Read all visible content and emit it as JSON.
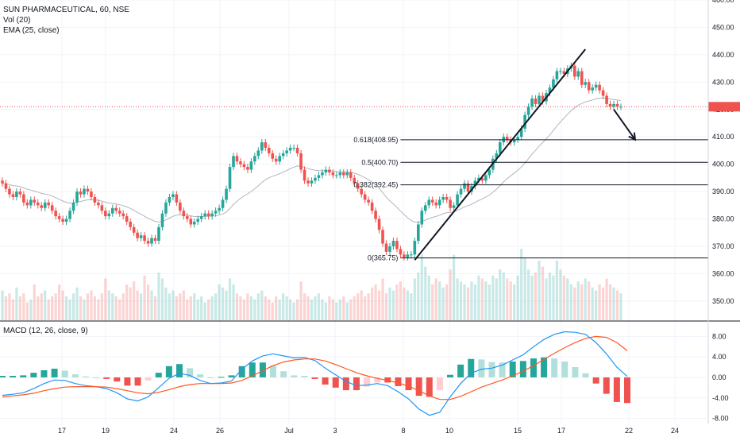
{
  "header": {
    "symbol": "SUN PHARMACEUTICAL, 60, NSE",
    "volume_label": "Vol (20)",
    "ema_label": "EMA (25, close)"
  },
  "macd_panel": {
    "label": "MACD (12, 26, close, 9)"
  },
  "colors": {
    "up": "#26a69a",
    "down": "#ef5350",
    "macd_line": "#2196f3",
    "signal_line": "#ff5722",
    "ema_line": "#b2b5be",
    "grid": "#f0f3fa",
    "current_price_line": "#ef5350"
  },
  "chart_data": [
    {
      "type": "candlestick",
      "panel": "price",
      "ylim": [
        343,
        460
      ],
      "y_ticks": [
        "350.00",
        "360.00",
        "370.00",
        "380.00",
        "390.00",
        "400.00",
        "410.00",
        "420.00",
        "430.00",
        "440.00",
        "450.00",
        "460.00"
      ],
      "x_ticks": [
        "17",
        "19",
        "24",
        "26",
        "Jul",
        "3",
        "8",
        "10",
        "15",
        "17",
        "22",
        "24"
      ],
      "current_price": 421,
      "ema_period": 25,
      "fibonacci": [
        {
          "label": "0.618(408.95)",
          "value": 408.95
        },
        {
          "label": "0.5(400.70)",
          "value": 400.7
        },
        {
          "label": "0.382(392.45)",
          "value": 392.45
        },
        {
          "label": "0(365.75)",
          "value": 365.75
        }
      ],
      "trendline": {
        "from": {
          "bar": 116,
          "price": 365
        },
        "to": {
          "bar": 164,
          "price": 442
        }
      },
      "arrow": {
        "from": {
          "bar": 172,
          "price": 420
        },
        "to": {
          "bar": 178,
          "price": 409
        }
      },
      "closes": [
        393,
        391,
        389,
        388,
        390,
        389,
        386,
        385,
        387,
        386,
        385,
        384,
        386,
        385,
        383,
        381,
        380,
        379,
        380,
        383,
        386,
        390,
        389,
        391,
        390,
        388,
        386,
        385,
        383,
        381,
        382,
        384,
        383,
        382,
        381,
        379,
        377,
        375,
        373,
        374,
        372,
        371,
        373,
        372,
        377,
        382,
        386,
        388,
        389,
        386,
        383,
        381,
        380,
        378,
        379,
        380,
        381,
        382,
        381,
        382,
        383,
        384,
        387,
        391,
        399,
        403,
        401,
        400,
        399,
        398,
        401,
        403,
        405,
        408,
        406,
        404,
        402,
        401,
        403,
        404,
        405,
        406,
        406,
        404,
        398,
        394,
        393,
        394,
        395,
        396,
        397,
        398,
        397,
        396,
        396,
        397,
        396,
        397,
        395,
        393,
        391,
        389,
        387,
        386,
        383,
        380,
        376,
        371,
        368,
        370,
        372,
        369,
        367,
        366,
        367,
        367,
        372,
        378,
        383,
        385,
        387,
        386,
        385,
        387,
        388,
        387,
        384,
        385,
        389,
        391,
        393,
        390,
        392,
        394,
        395,
        394,
        396,
        398,
        402,
        404,
        408,
        410,
        409,
        408,
        409,
        410,
        413,
        418,
        421,
        424,
        422,
        425,
        423,
        426,
        428,
        431,
        434,
        434,
        433,
        435,
        436,
        432,
        434,
        429,
        430,
        427,
        428,
        429,
        427,
        425,
        422,
        421,
        422,
        421,
        421
      ],
      "volume_scale": "relative",
      "volumes": [
        10,
        8,
        9,
        7,
        11,
        8,
        9,
        6,
        7,
        12,
        8,
        9,
        10,
        7,
        8,
        9,
        12,
        10,
        8,
        7,
        9,
        11,
        8,
        7,
        9,
        10,
        8,
        7,
        9,
        14,
        10,
        9,
        8,
        7,
        9,
        12,
        11,
        13,
        10,
        9,
        15,
        12,
        10,
        8,
        16,
        14,
        11,
        9,
        10,
        8,
        9,
        10,
        7,
        8,
        9,
        7,
        8,
        6,
        7,
        8,
        9,
        12,
        11,
        10,
        14,
        12,
        9,
        8,
        7,
        9,
        8,
        7,
        9,
        10,
        8,
        7,
        6,
        8,
        7,
        9,
        8,
        7,
        6,
        7,
        13,
        9,
        8,
        7,
        8,
        9,
        7,
        6,
        8,
        7,
        6,
        7,
        8,
        6,
        7,
        8,
        9,
        10,
        8,
        9,
        11,
        12,
        10,
        14,
        9,
        11,
        10,
        12,
        13,
        11,
        10,
        9,
        14,
        16,
        22,
        18,
        15,
        12,
        14,
        13,
        11,
        12,
        17,
        22,
        14,
        13,
        12,
        11,
        13,
        12,
        15,
        14,
        13,
        12,
        15,
        14,
        17,
        16,
        14,
        13,
        12,
        15,
        24,
        21,
        17,
        15,
        16,
        20,
        18,
        14,
        16,
        15,
        20,
        17,
        15,
        14,
        12,
        11,
        13,
        12,
        14,
        13,
        11,
        10,
        12,
        11,
        14,
        12,
        11,
        10,
        9
      ],
      "volume_panel_label": "Vol (20)",
      "ema_label": "EMA (25, close)",
      "title": "SUN PHARMACEUTICAL, 60, NSE"
    },
    {
      "type": "line",
      "panel": "macd",
      "title": "MACD (12, 26, close, 9)",
      "ylim": [
        -9,
        11
      ],
      "y_ticks": [
        "8.00",
        "4.00",
        "0.00",
        "-4.00",
        "-8.00"
      ],
      "series": [
        {
          "name": "MACD",
          "role": "macd",
          "values": [
            -3.5,
            -3.3,
            -3.0,
            -2.2,
            -1.2,
            -0.5,
            -0.6,
            -1.2,
            -1.6,
            -1.8,
            -2.2,
            -3.0,
            -4.2,
            -4.6,
            -3.8,
            -2.0,
            -0.2,
            0.8,
            0.4,
            -0.6,
            -1.2,
            -1.1,
            -0.7,
            1.6,
            3.2,
            4.2,
            4.6,
            4.2,
            3.8,
            3.9,
            3.3,
            1.8,
            0.5,
            -0.8,
            -1.6,
            -1.5,
            -1.2,
            -1.6,
            -2.8,
            -4.2,
            -6.2,
            -7.4,
            -6.8,
            -3.8,
            -1.2,
            0.8,
            1.6,
            1.8,
            2.4,
            3.4,
            4.4,
            6.0,
            7.4,
            8.4,
            8.9,
            8.8,
            8.4,
            6.8,
            4.6,
            2.0,
            0.2
          ]
        },
        {
          "name": "Signal",
          "role": "signal",
          "values": [
            -3.8,
            -3.6,
            -3.4,
            -3.1,
            -2.6,
            -2.2,
            -1.9,
            -1.8,
            -1.8,
            -1.8,
            -1.9,
            -2.2,
            -2.6,
            -3.0,
            -3.2,
            -2.9,
            -2.4,
            -1.8,
            -1.4,
            -1.2,
            -1.2,
            -1.2,
            -1.1,
            -0.6,
            0.3,
            1.3,
            2.3,
            3.0,
            3.4,
            3.6,
            3.6,
            3.2,
            2.5,
            1.7,
            0.9,
            0.3,
            -0.2,
            -0.6,
            -1.1,
            -1.7,
            -2.6,
            -3.6,
            -4.3,
            -4.3,
            -3.7,
            -2.8,
            -1.9,
            -1.2,
            -0.5,
            0.3,
            1.2,
            2.3,
            3.5,
            4.7,
            5.8,
            6.8,
            7.6,
            8.0,
            7.8,
            6.8,
            5.2
          ]
        }
      ],
      "histogram_values": [
        0.3,
        0.3,
        0.4,
        0.9,
        1.4,
        1.7,
        1.3,
        0.6,
        0.2,
        0.0,
        -0.3,
        -0.8,
        -1.6,
        -1.6,
        -0.6,
        0.9,
        2.2,
        2.6,
        1.8,
        0.6,
        0.0,
        0.1,
        0.4,
        2.2,
        2.9,
        2.9,
        2.3,
        1.2,
        0.4,
        0.3,
        -0.3,
        -1.4,
        -2.0,
        -2.5,
        -2.5,
        -1.8,
        -1.0,
        -1.0,
        -1.7,
        -2.5,
        -3.6,
        -3.8,
        -2.5,
        0.5,
        2.5,
        3.6,
        3.5,
        3.0,
        2.9,
        3.1,
        3.2,
        3.7,
        3.9,
        3.7,
        3.1,
        2.0,
        0.8,
        -1.2,
        -3.2,
        -4.8,
        -5.0
      ]
    }
  ]
}
